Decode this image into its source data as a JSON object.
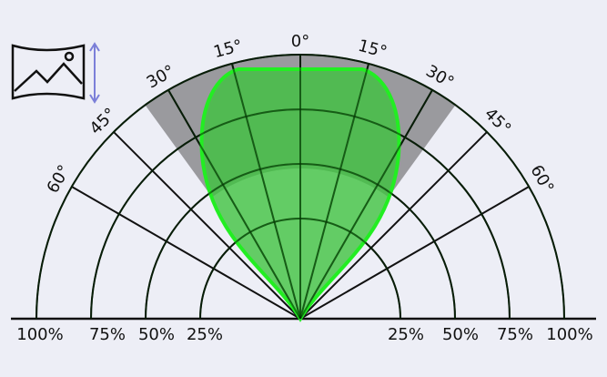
{
  "diagram": {
    "center_label": "0°",
    "left_angles": [
      "15°",
      "30°",
      "45°",
      "60°"
    ],
    "right_angles": [
      "15°",
      "30°",
      "45°",
      "60°"
    ],
    "left_levels": [
      "25%",
      "50%",
      "75%",
      "100%"
    ],
    "right_levels": [
      "25%",
      "50%",
      "75%",
      "100%"
    ]
  }
}
